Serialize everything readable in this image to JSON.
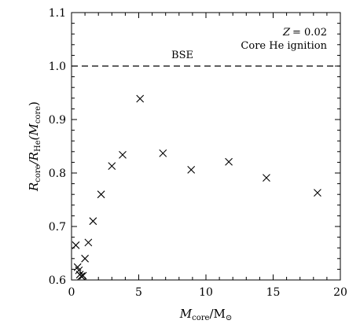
{
  "chart_data": {
    "type": "scatter",
    "title": "",
    "xlabel": {
      "base": "M",
      "sub": "core",
      "tail": "/M",
      "tail_sub": "⊙"
    },
    "ylabel": {
      "p1": "R",
      "p1_sub": "core",
      "p2": "/R",
      "p2_sub": "He",
      "p3": "(M",
      "p3_sub": "core",
      "p4": ")"
    },
    "xlim": [
      0,
      20
    ],
    "ylim": [
      0.6,
      1.1
    ],
    "xticks": [
      0,
      5,
      10,
      15,
      20
    ],
    "yticks": [
      0.6,
      0.7,
      0.8,
      0.9,
      1.0,
      1.1
    ],
    "ytick_labels": [
      "0.6",
      "0.7",
      "0.8",
      "0.9",
      "1.0",
      "1.1"
    ],
    "marker": "x",
    "points": [
      {
        "x": 0.32,
        "y": 0.665
      },
      {
        "x": 0.45,
        "y": 0.624
      },
      {
        "x": 0.55,
        "y": 0.618
      },
      {
        "x": 0.62,
        "y": 0.61
      },
      {
        "x": 0.72,
        "y": 0.607
      },
      {
        "x": 0.85,
        "y": 0.608
      },
      {
        "x": 1.0,
        "y": 0.64
      },
      {
        "x": 1.25,
        "y": 0.67
      },
      {
        "x": 1.6,
        "y": 0.71
      },
      {
        "x": 2.2,
        "y": 0.76
      },
      {
        "x": 3.0,
        "y": 0.813
      },
      {
        "x": 3.8,
        "y": 0.834
      },
      {
        "x": 5.1,
        "y": 0.939
      },
      {
        "x": 6.8,
        "y": 0.837
      },
      {
        "x": 8.9,
        "y": 0.806
      },
      {
        "x": 11.7,
        "y": 0.821
      },
      {
        "x": 14.5,
        "y": 0.791
      },
      {
        "x": 18.3,
        "y": 0.763
      }
    ],
    "reference_line": {
      "y": 1.0,
      "style": "dashed",
      "label": "BSE"
    },
    "annotations": {
      "z_label": "Z",
      "z_value": "= 0.02",
      "line2": "Core He ignition"
    },
    "grid": false
  }
}
